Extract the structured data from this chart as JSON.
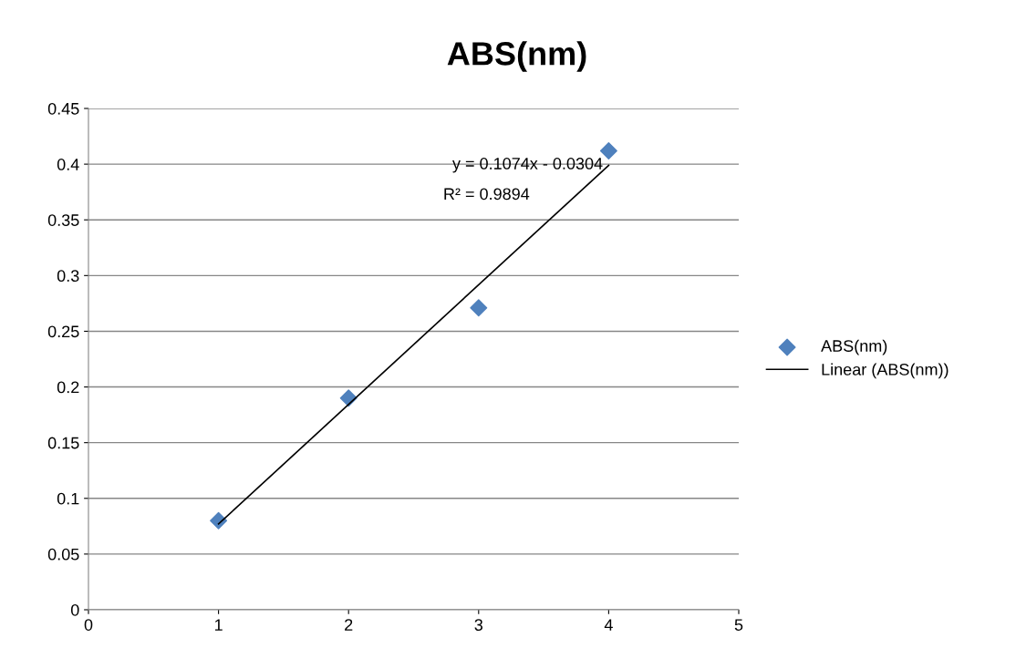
{
  "chart_data": {
    "type": "scatter",
    "title": "ABS(nm)",
    "series": [
      {
        "name": "ABS(nm)",
        "color": "#4f81bd",
        "marker": "diamond",
        "x": [
          1,
          2,
          3,
          4
        ],
        "values": [
          0.08,
          0.19,
          0.271,
          0.412
        ]
      },
      {
        "name": "Linear (ABS(nm))",
        "type": "line",
        "color": "#000000",
        "marker": "none",
        "line_style": "solid",
        "x": [
          1,
          4
        ],
        "values": [
          0.077,
          0.399
        ]
      }
    ],
    "annotations": [
      {
        "text": "y = 0.1074x - 0.0304",
        "x": 4,
        "y": 0.399
      },
      "R² = 0.9894"
    ],
    "xlim": [
      0,
      5
    ],
    "xticks": [
      0,
      1,
      2,
      3,
      4,
      5
    ],
    "ylim": [
      0,
      0.45
    ],
    "yticks": [
      0,
      0.05,
      0.1,
      0.15,
      0.2,
      0.25,
      0.3,
      0.35,
      0.4,
      0.45
    ],
    "grid": "y",
    "legend": "right"
  }
}
